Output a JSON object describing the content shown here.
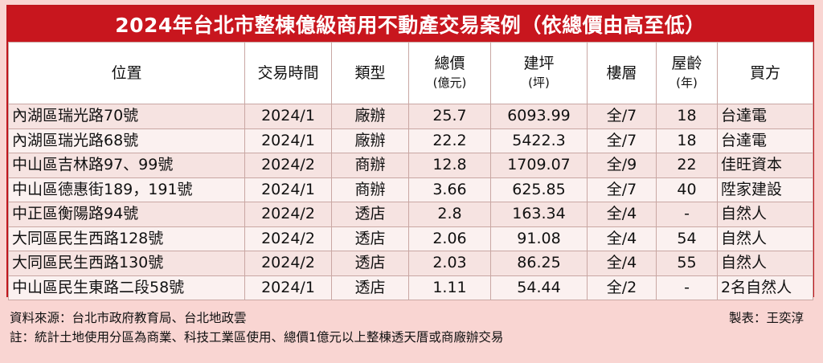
{
  "title": "2024年台北市整棟億級商用不動產交易案例（依總價由高至低）",
  "headers": {
    "location": "位置",
    "date": "交易時間",
    "type": "類型",
    "price": "總價",
    "price_unit": "(億元)",
    "area": "建坪",
    "area_unit": "(坪)",
    "floors": "樓層",
    "age": "屋齡",
    "age_unit": "(年)",
    "buyer": "買方"
  },
  "rows": [
    {
      "location": "內湖區瑞光路70號",
      "date": "2024/1",
      "type": "廠辦",
      "price": "25.7",
      "area": "6093.99",
      "floors": "全/7",
      "age": "18",
      "buyer": "台達電"
    },
    {
      "location": "內湖區瑞光路68號",
      "date": "2024/1",
      "type": "廠辦",
      "price": "22.2",
      "area": "5422.3",
      "floors": "全/7",
      "age": "18",
      "buyer": "台達電"
    },
    {
      "location": "中山區吉林路97、99號",
      "date": "2024/2",
      "type": "商辦",
      "price": "12.8",
      "area": "1709.07",
      "floors": "全/9",
      "age": "22",
      "buyer": "佳旺資本"
    },
    {
      "location": "中山區德惠街189，191號",
      "date": "2024/1",
      "type": "商辦",
      "price": "3.66",
      "area": "625.85",
      "floors": "全/7",
      "age": "40",
      "buyer": "陞家建設"
    },
    {
      "location": "中正區衡陽路94號",
      "date": "2024/2",
      "type": "透店",
      "price": "2.8",
      "area": "163.34",
      "floors": "全/4",
      "age": "-",
      "buyer": "自然人"
    },
    {
      "location": "大同區民生西路128號",
      "date": "2024/2",
      "type": "透店",
      "price": "2.06",
      "area": "91.08",
      "floors": "全/4",
      "age": "54",
      "buyer": "自然人"
    },
    {
      "location": "大同區民生西路130號",
      "date": "2024/2",
      "type": "透店",
      "price": "2.03",
      "area": "86.25",
      "floors": "全/4",
      "age": "55",
      "buyer": "自然人"
    },
    {
      "location": "中山區民生東路二段58號",
      "date": "2024/1",
      "type": "透店",
      "price": "1.11",
      "area": "54.44",
      "floors": "全/2",
      "age": "-",
      "buyer": "2名自然人"
    }
  ],
  "footer": {
    "source": "資料來源：台北市政府教育局、台北地政雲",
    "note": "註：統計土地使用分區為商業、科技工業區使用、總價1億元以上整棟透天厝或商廠辦交易",
    "credit": "製表：王奕淳"
  }
}
